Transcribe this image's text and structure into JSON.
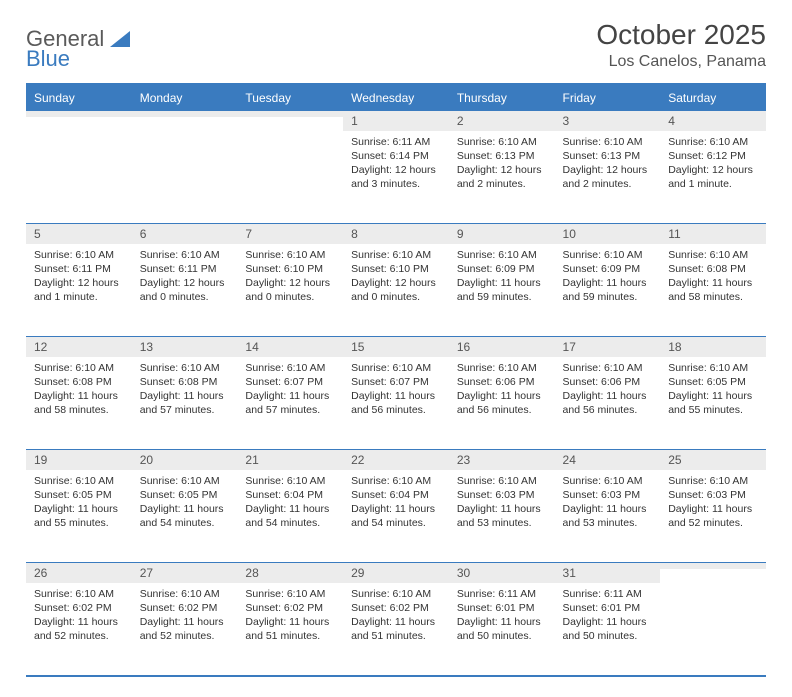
{
  "brand": {
    "part1": "General",
    "part2": "Blue"
  },
  "title": "October 2025",
  "location": "Los Canelos, Panama",
  "colors": {
    "header_bg": "#3a7bbf",
    "header_text": "#ffffff",
    "daynum_bg": "#ececec",
    "text": "#333333",
    "rule": "#3a7bbf"
  },
  "day_headers": [
    "Sunday",
    "Monday",
    "Tuesday",
    "Wednesday",
    "Thursday",
    "Friday",
    "Saturday"
  ],
  "weeks": [
    [
      {
        "n": "",
        "lines": []
      },
      {
        "n": "",
        "lines": []
      },
      {
        "n": "",
        "lines": []
      },
      {
        "n": "1",
        "lines": [
          "Sunrise: 6:11 AM",
          "Sunset: 6:14 PM",
          "Daylight: 12 hours and 3 minutes."
        ]
      },
      {
        "n": "2",
        "lines": [
          "Sunrise: 6:10 AM",
          "Sunset: 6:13 PM",
          "Daylight: 12 hours and 2 minutes."
        ]
      },
      {
        "n": "3",
        "lines": [
          "Sunrise: 6:10 AM",
          "Sunset: 6:13 PM",
          "Daylight: 12 hours and 2 minutes."
        ]
      },
      {
        "n": "4",
        "lines": [
          "Sunrise: 6:10 AM",
          "Sunset: 6:12 PM",
          "Daylight: 12 hours and 1 minute."
        ]
      }
    ],
    [
      {
        "n": "5",
        "lines": [
          "Sunrise: 6:10 AM",
          "Sunset: 6:11 PM",
          "Daylight: 12 hours and 1 minute."
        ]
      },
      {
        "n": "6",
        "lines": [
          "Sunrise: 6:10 AM",
          "Sunset: 6:11 PM",
          "Daylight: 12 hours and 0 minutes."
        ]
      },
      {
        "n": "7",
        "lines": [
          "Sunrise: 6:10 AM",
          "Sunset: 6:10 PM",
          "Daylight: 12 hours and 0 minutes."
        ]
      },
      {
        "n": "8",
        "lines": [
          "Sunrise: 6:10 AM",
          "Sunset: 6:10 PM",
          "Daylight: 12 hours and 0 minutes."
        ]
      },
      {
        "n": "9",
        "lines": [
          "Sunrise: 6:10 AM",
          "Sunset: 6:09 PM",
          "Daylight: 11 hours and 59 minutes."
        ]
      },
      {
        "n": "10",
        "lines": [
          "Sunrise: 6:10 AM",
          "Sunset: 6:09 PM",
          "Daylight: 11 hours and 59 minutes."
        ]
      },
      {
        "n": "11",
        "lines": [
          "Sunrise: 6:10 AM",
          "Sunset: 6:08 PM",
          "Daylight: 11 hours and 58 minutes."
        ]
      }
    ],
    [
      {
        "n": "12",
        "lines": [
          "Sunrise: 6:10 AM",
          "Sunset: 6:08 PM",
          "Daylight: 11 hours and 58 minutes."
        ]
      },
      {
        "n": "13",
        "lines": [
          "Sunrise: 6:10 AM",
          "Sunset: 6:08 PM",
          "Daylight: 11 hours and 57 minutes."
        ]
      },
      {
        "n": "14",
        "lines": [
          "Sunrise: 6:10 AM",
          "Sunset: 6:07 PM",
          "Daylight: 11 hours and 57 minutes."
        ]
      },
      {
        "n": "15",
        "lines": [
          "Sunrise: 6:10 AM",
          "Sunset: 6:07 PM",
          "Daylight: 11 hours and 56 minutes."
        ]
      },
      {
        "n": "16",
        "lines": [
          "Sunrise: 6:10 AM",
          "Sunset: 6:06 PM",
          "Daylight: 11 hours and 56 minutes."
        ]
      },
      {
        "n": "17",
        "lines": [
          "Sunrise: 6:10 AM",
          "Sunset: 6:06 PM",
          "Daylight: 11 hours and 56 minutes."
        ]
      },
      {
        "n": "18",
        "lines": [
          "Sunrise: 6:10 AM",
          "Sunset: 6:05 PM",
          "Daylight: 11 hours and 55 minutes."
        ]
      }
    ],
    [
      {
        "n": "19",
        "lines": [
          "Sunrise: 6:10 AM",
          "Sunset: 6:05 PM",
          "Daylight: 11 hours and 55 minutes."
        ]
      },
      {
        "n": "20",
        "lines": [
          "Sunrise: 6:10 AM",
          "Sunset: 6:05 PM",
          "Daylight: 11 hours and 54 minutes."
        ]
      },
      {
        "n": "21",
        "lines": [
          "Sunrise: 6:10 AM",
          "Sunset: 6:04 PM",
          "Daylight: 11 hours and 54 minutes."
        ]
      },
      {
        "n": "22",
        "lines": [
          "Sunrise: 6:10 AM",
          "Sunset: 6:04 PM",
          "Daylight: 11 hours and 54 minutes."
        ]
      },
      {
        "n": "23",
        "lines": [
          "Sunrise: 6:10 AM",
          "Sunset: 6:03 PM",
          "Daylight: 11 hours and 53 minutes."
        ]
      },
      {
        "n": "24",
        "lines": [
          "Sunrise: 6:10 AM",
          "Sunset: 6:03 PM",
          "Daylight: 11 hours and 53 minutes."
        ]
      },
      {
        "n": "25",
        "lines": [
          "Sunrise: 6:10 AM",
          "Sunset: 6:03 PM",
          "Daylight: 11 hours and 52 minutes."
        ]
      }
    ],
    [
      {
        "n": "26",
        "lines": [
          "Sunrise: 6:10 AM",
          "Sunset: 6:02 PM",
          "Daylight: 11 hours and 52 minutes."
        ]
      },
      {
        "n": "27",
        "lines": [
          "Sunrise: 6:10 AM",
          "Sunset: 6:02 PM",
          "Daylight: 11 hours and 52 minutes."
        ]
      },
      {
        "n": "28",
        "lines": [
          "Sunrise: 6:10 AM",
          "Sunset: 6:02 PM",
          "Daylight: 11 hours and 51 minutes."
        ]
      },
      {
        "n": "29",
        "lines": [
          "Sunrise: 6:10 AM",
          "Sunset: 6:02 PM",
          "Daylight: 11 hours and 51 minutes."
        ]
      },
      {
        "n": "30",
        "lines": [
          "Sunrise: 6:11 AM",
          "Sunset: 6:01 PM",
          "Daylight: 11 hours and 50 minutes."
        ]
      },
      {
        "n": "31",
        "lines": [
          "Sunrise: 6:11 AM",
          "Sunset: 6:01 PM",
          "Daylight: 11 hours and 50 minutes."
        ]
      },
      {
        "n": "",
        "lines": []
      }
    ]
  ]
}
